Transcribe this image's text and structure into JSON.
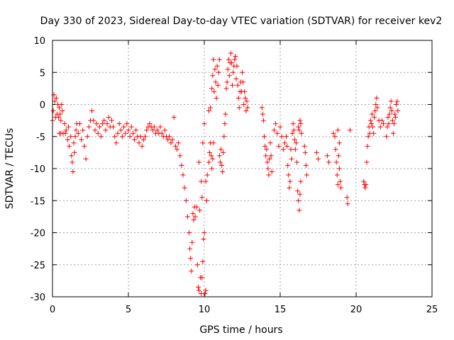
{
  "chart_data": {
    "type": "scatter",
    "title": "Day 330 of 2023, Sidereal Day-to-day VTEC variation (SDTVAR) for receiver kev2",
    "xlabel": "GPS time / hours",
    "ylabel": "SDTVAR / TECUs",
    "xlim": [
      0,
      25
    ],
    "ylim": [
      -30,
      10
    ],
    "xticks": [
      0,
      5,
      10,
      15,
      20,
      25
    ],
    "yticks": [
      10,
      5,
      0,
      -5,
      -10,
      -15,
      -20,
      -25,
      -30
    ],
    "grid": true,
    "marker": "+",
    "color": "#ff0000",
    "series": [
      {
        "name": "SDTVAR",
        "points": [
          [
            0.0,
            -2.5
          ],
          [
            0.05,
            -1.0
          ],
          [
            0.1,
            1.5
          ],
          [
            0.15,
            0.5
          ],
          [
            0.2,
            -2.0
          ],
          [
            0.25,
            1.0
          ],
          [
            0.3,
            -1.5
          ],
          [
            0.35,
            0.0
          ],
          [
            0.4,
            -2.0
          ],
          [
            0.45,
            -0.5
          ],
          [
            0.5,
            -1.5
          ],
          [
            0.55,
            -2.5
          ],
          [
            0.6,
            0.0
          ],
          [
            0.65,
            -1.0
          ],
          [
            0.45,
            -4.5
          ],
          [
            0.55,
            -4.5
          ],
          [
            0.7,
            -4.5
          ],
          [
            0.85,
            -4.5
          ],
          [
            0.8,
            -3.0
          ],
          [
            0.9,
            -4.0
          ],
          [
            1.0,
            -5.5
          ],
          [
            1.05,
            -3.5
          ],
          [
            1.1,
            -6.5
          ],
          [
            1.2,
            -5.0
          ],
          [
            1.25,
            -8.0
          ],
          [
            1.3,
            -9.0
          ],
          [
            1.35,
            -10.5
          ],
          [
            1.4,
            -6.0
          ],
          [
            1.45,
            -7.5
          ],
          [
            1.5,
            -5.0
          ],
          [
            1.55,
            -4.0
          ],
          [
            1.6,
            -3.0
          ],
          [
            1.7,
            -4.5
          ],
          [
            1.8,
            -3.0
          ],
          [
            1.9,
            -5.5
          ],
          [
            2.0,
            -4.0
          ],
          [
            2.1,
            -6.5
          ],
          [
            2.2,
            -8.5
          ],
          [
            2.3,
            -5.0
          ],
          [
            2.4,
            -3.5
          ],
          [
            2.5,
            -2.5
          ],
          [
            2.6,
            -1.0
          ],
          [
            2.7,
            -2.5
          ],
          [
            2.8,
            -4.0
          ],
          [
            2.9,
            -3.0
          ],
          [
            3.0,
            -4.5
          ],
          [
            3.1,
            -3.5
          ],
          [
            3.2,
            -5.0
          ],
          [
            3.3,
            -3.0
          ],
          [
            3.4,
            -2.5
          ],
          [
            3.5,
            -4.0
          ],
          [
            3.6,
            -3.0
          ],
          [
            3.7,
            -2.0
          ],
          [
            3.8,
            -3.5
          ],
          [
            3.9,
            -2.5
          ],
          [
            4.0,
            -3.5
          ],
          [
            4.1,
            -5.0
          ],
          [
            4.2,
            -6.0
          ],
          [
            4.3,
            -4.5
          ],
          [
            4.4,
            -3.0
          ],
          [
            4.5,
            -4.0
          ],
          [
            4.6,
            -5.0
          ],
          [
            4.7,
            -3.5
          ],
          [
            4.8,
            -4.5
          ],
          [
            4.9,
            -3.0
          ],
          [
            5.0,
            -4.0
          ],
          [
            5.1,
            -5.0
          ],
          [
            5.2,
            -3.5
          ],
          [
            5.3,
            -4.5
          ],
          [
            5.4,
            -5.5
          ],
          [
            5.5,
            -4.0
          ],
          [
            5.6,
            -5.0
          ],
          [
            5.7,
            -6.0
          ],
          [
            5.8,
            -5.0
          ],
          [
            5.9,
            -6.5
          ],
          [
            6.0,
            -5.5
          ],
          [
            6.1,
            -5.0
          ],
          [
            6.2,
            -4.0
          ],
          [
            6.3,
            -3.5
          ],
          [
            6.4,
            -3.0
          ],
          [
            6.5,
            -3.5
          ],
          [
            6.6,
            -4.0
          ],
          [
            6.7,
            -3.5
          ],
          [
            6.8,
            -4.5
          ],
          [
            6.9,
            -4.0
          ],
          [
            7.0,
            -4.5
          ],
          [
            7.1,
            -3.5
          ],
          [
            7.2,
            -4.5
          ],
          [
            7.3,
            -5.0
          ],
          [
            7.4,
            -4.0
          ],
          [
            7.5,
            -5.0
          ],
          [
            7.6,
            -5.5
          ],
          [
            7.7,
            -5.0
          ],
          [
            7.8,
            -6.0
          ],
          [
            7.9,
            -5.5
          ],
          [
            8.0,
            -2.0
          ],
          [
            8.1,
            -6.5
          ],
          [
            8.2,
            -7.0
          ],
          [
            8.3,
            -6.0
          ],
          [
            8.4,
            -8.0
          ],
          [
            8.5,
            -9.5
          ],
          [
            8.6,
            -11.0
          ],
          [
            8.7,
            -13.0
          ],
          [
            8.8,
            -15.0
          ],
          [
            8.9,
            -17.5
          ],
          [
            9.0,
            -20.0
          ],
          [
            9.05,
            -22.5
          ],
          [
            9.1,
            -24.0
          ],
          [
            9.15,
            -26.0
          ],
          [
            9.2,
            -21.5
          ],
          [
            9.25,
            -17.0
          ],
          [
            9.3,
            -18.0
          ],
          [
            9.35,
            -16.0
          ],
          [
            9.4,
            -17.5
          ],
          [
            9.5,
            -16.0
          ],
          [
            9.55,
            -25.0
          ],
          [
            9.6,
            -28.5
          ],
          [
            9.65,
            -29.0
          ],
          [
            9.7,
            -16.5
          ],
          [
            9.75,
            -27.0
          ],
          [
            9.8,
            -29.5
          ],
          [
            9.85,
            -27.0
          ],
          [
            9.9,
            -24.5
          ],
          [
            9.95,
            -21.0
          ],
          [
            10.0,
            -20.0
          ],
          [
            10.05,
            -29.5
          ],
          [
            10.1,
            -29.0
          ],
          [
            9.65,
            -9.0
          ],
          [
            9.8,
            -12.0
          ],
          [
            9.85,
            -14.5
          ],
          [
            9.9,
            -6.0
          ],
          [
            10.0,
            -3.0
          ],
          [
            10.1,
            -12.0
          ],
          [
            10.15,
            -15.0
          ],
          [
            10.2,
            -11.0
          ],
          [
            10.3,
            -9.0
          ],
          [
            10.35,
            -7.5
          ],
          [
            10.4,
            -6.0
          ],
          [
            10.45,
            -8.0
          ],
          [
            10.5,
            -10.0
          ],
          [
            10.55,
            -8.5
          ],
          [
            10.6,
            -6.0
          ],
          [
            10.3,
            -1.0
          ],
          [
            10.4,
            -0.5
          ],
          [
            10.5,
            2.5
          ],
          [
            10.55,
            4.5
          ],
          [
            10.6,
            7.0
          ],
          [
            10.65,
            2.0
          ],
          [
            10.7,
            5.5
          ],
          [
            10.75,
            3.5
          ],
          [
            10.8,
            1.0
          ],
          [
            10.85,
            6.0
          ],
          [
            10.9,
            3.0
          ],
          [
            10.95,
            5.0
          ],
          [
            11.0,
            7.0
          ],
          [
            11.0,
            -8.0
          ],
          [
            11.05,
            -9.0
          ],
          [
            11.1,
            -7.0
          ],
          [
            11.15,
            -9.5
          ],
          [
            11.2,
            -10.5
          ],
          [
            11.25,
            -7.5
          ],
          [
            11.3,
            -5.0
          ],
          [
            11.35,
            -3.0
          ],
          [
            11.4,
            -1.5
          ],
          [
            11.45,
            2.5
          ],
          [
            11.5,
            3.5
          ],
          [
            11.55,
            5.5
          ],
          [
            11.6,
            7.0
          ],
          [
            11.65,
            4.5
          ],
          [
            11.7,
            6.5
          ],
          [
            11.75,
            8.0
          ],
          [
            11.8,
            6.5
          ],
          [
            11.85,
            3.0
          ],
          [
            11.9,
            5.0
          ],
          [
            11.95,
            6.0
          ],
          [
            12.0,
            7.0
          ],
          [
            12.05,
            7.5
          ],
          [
            12.1,
            4.0
          ],
          [
            12.15,
            6.0
          ],
          [
            12.2,
            3.0
          ],
          [
            12.25,
            1.0
          ],
          [
            12.3,
            -0.5
          ],
          [
            12.35,
            2.0
          ],
          [
            12.4,
            3.5
          ],
          [
            12.45,
            2.0
          ],
          [
            12.5,
            5.0
          ],
          [
            12.55,
            3.5
          ],
          [
            12.6,
            0.0
          ],
          [
            12.65,
            2.0
          ],
          [
            12.7,
            1.0
          ],
          [
            12.75,
            -1.0
          ],
          [
            12.8,
            0.5
          ],
          [
            12.85,
            -0.5
          ],
          [
            13.8,
            -0.5
          ],
          [
            13.85,
            -1.5
          ],
          [
            13.9,
            -2.5
          ],
          [
            13.95,
            -5.0
          ],
          [
            14.0,
            -6.5
          ],
          [
            14.05,
            -8.0
          ],
          [
            14.1,
            -7.0
          ],
          [
            14.15,
            -9.0
          ],
          [
            14.2,
            -10.0
          ],
          [
            14.25,
            -11.0
          ],
          [
            14.3,
            -8.5
          ],
          [
            14.35,
            -6.0
          ],
          [
            14.4,
            -8.0
          ],
          [
            14.45,
            -10.5
          ],
          [
            14.6,
            -4.0
          ],
          [
            14.7,
            -3.0
          ],
          [
            14.8,
            -4.5
          ],
          [
            14.9,
            -6.5
          ],
          [
            15.0,
            -3.5
          ],
          [
            15.1,
            -5.0
          ],
          [
            15.2,
            -7.0
          ],
          [
            15.3,
            -6.0
          ],
          [
            15.4,
            -5.0
          ],
          [
            15.45,
            -6.5
          ],
          [
            15.5,
            -9.5
          ],
          [
            15.55,
            -11.0
          ],
          [
            15.6,
            -13.0
          ],
          [
            15.65,
            -12.0
          ],
          [
            15.7,
            -7.0
          ],
          [
            15.75,
            -8.5
          ],
          [
            15.8,
            -4.5
          ],
          [
            15.85,
            -3.0
          ],
          [
            15.9,
            -4.0
          ],
          [
            15.95,
            -5.5
          ],
          [
            16.0,
            -7.0
          ],
          [
            16.05,
            -6.0
          ],
          [
            16.1,
            -9.0
          ],
          [
            16.15,
            -13.5
          ],
          [
            16.2,
            -15.0
          ],
          [
            16.25,
            -16.5
          ],
          [
            16.3,
            -14.0
          ],
          [
            16.35,
            -12.0
          ],
          [
            16.2,
            -3.5
          ],
          [
            16.25,
            -4.0
          ],
          [
            16.3,
            -2.5
          ],
          [
            16.35,
            -3.0
          ],
          [
            16.4,
            -4.5
          ],
          [
            16.6,
            -6.5
          ],
          [
            16.65,
            -7.5
          ],
          [
            16.7,
            -9.5
          ],
          [
            16.75,
            -11.0
          ],
          [
            17.4,
            -7.5
          ],
          [
            17.5,
            -8.5
          ],
          [
            18.1,
            -8.0
          ],
          [
            18.2,
            -9.0
          ],
          [
            18.5,
            -4.5
          ],
          [
            18.6,
            -5.0
          ],
          [
            18.65,
            -7.0
          ],
          [
            18.7,
            -9.0
          ],
          [
            18.75,
            -11.0
          ],
          [
            18.8,
            -12.5
          ],
          [
            18.85,
            -8.0
          ],
          [
            18.9,
            -10.0
          ],
          [
            18.95,
            -12.0
          ],
          [
            19.0,
            -13.0
          ],
          [
            18.8,
            -4.0
          ],
          [
            18.9,
            -6.0
          ],
          [
            19.4,
            -14.5
          ],
          [
            19.45,
            -15.5
          ],
          [
            19.6,
            -4.0
          ],
          [
            20.5,
            -12.0
          ],
          [
            20.55,
            -12.5
          ],
          [
            20.6,
            -13.0
          ],
          [
            20.65,
            -12.5
          ],
          [
            20.7,
            -9.0
          ],
          [
            20.75,
            -6.5
          ],
          [
            20.8,
            -5.0
          ],
          [
            20.85,
            -3.5
          ],
          [
            20.9,
            -4.5
          ],
          [
            20.95,
            -2.5
          ],
          [
            21.0,
            -3.0
          ],
          [
            21.05,
            -1.5
          ],
          [
            21.1,
            -3.5
          ],
          [
            21.15,
            -4.5
          ],
          [
            21.2,
            -2.0
          ],
          [
            21.25,
            -1.0
          ],
          [
            21.3,
            0.0
          ],
          [
            21.35,
            1.0
          ],
          [
            21.4,
            -0.5
          ],
          [
            21.5,
            -2.5
          ],
          [
            21.6,
            -3.5
          ],
          [
            21.7,
            -2.5
          ],
          [
            21.8,
            -3.0
          ],
          [
            22.0,
            -5.0
          ],
          [
            22.05,
            -3.5
          ],
          [
            22.1,
            -2.0
          ],
          [
            22.15,
            -3.0
          ],
          [
            22.2,
            -1.5
          ],
          [
            22.25,
            -0.5
          ],
          [
            22.3,
            0.5
          ],
          [
            22.35,
            -1.0
          ],
          [
            22.4,
            -2.5
          ],
          [
            22.45,
            -4.5
          ],
          [
            22.5,
            -3.0
          ],
          [
            22.55,
            -1.5
          ],
          [
            22.6,
            -2.0
          ],
          [
            22.65,
            0.0
          ],
          [
            22.7,
            0.5
          ],
          [
            22.75,
            -1.0
          ]
        ]
      }
    ]
  }
}
